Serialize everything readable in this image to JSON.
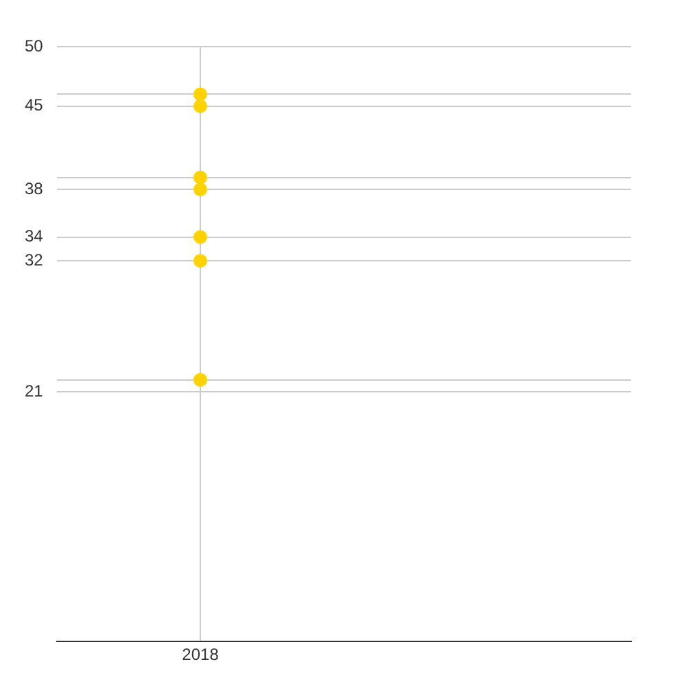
{
  "chart_data": {
    "type": "scatter",
    "categories": [
      "2018"
    ],
    "series": [
      {
        "color": "#ffd200",
        "values": [
          46
        ]
      },
      {
        "color": "#ffd200",
        "values": [
          45
        ]
      },
      {
        "color": "#ffd200",
        "values": [
          39
        ]
      },
      {
        "color": "#ffd200",
        "values": [
          38
        ]
      },
      {
        "color": "#ffd200",
        "values": [
          34
        ]
      },
      {
        "color": "#ffd200",
        "values": [
          32
        ]
      },
      {
        "color": "#ffd200",
        "values": [
          22
        ]
      }
    ],
    "ylim": [
      0,
      50
    ],
    "yticks": [
      {
        "value": 0,
        "label": null
      },
      21,
      {
        "value": 22,
        "label": null
      },
      32,
      34,
      38,
      {
        "value": 39,
        "label": null
      },
      45,
      {
        "value": 46,
        "label": null
      },
      50
    ],
    "grid": true,
    "marker": "circle"
  }
}
